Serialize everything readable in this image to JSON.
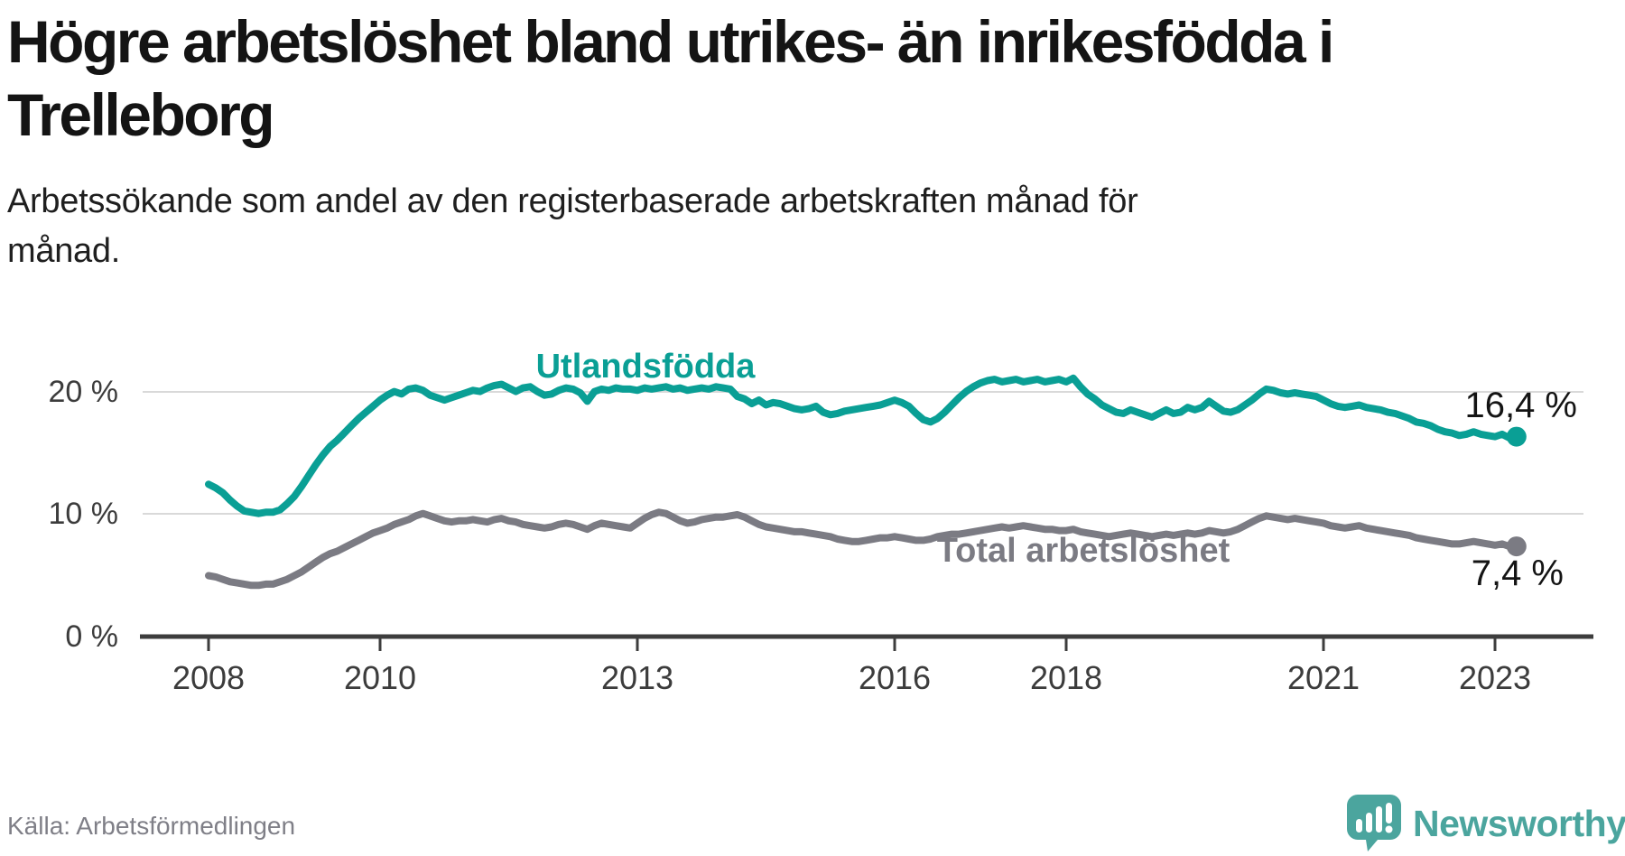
{
  "header": {
    "title_lines": [
      "Högre arbetslöshet bland utrikes- än inrikesfödda i",
      "Trelleborg"
    ],
    "subtitle_lines": [
      "Arbetssökande som andel av den registerbaserade arbetskraften månad för",
      "månad."
    ]
  },
  "footer": {
    "source": "Källa: Arbetsförmedlingen",
    "brand_name": "Newsworthy",
    "brand_color": "#4ba59e"
  },
  "chart_data": {
    "type": "line",
    "title": "Högre arbetslöshet bland utrikes- än inrikesfödda i Trelleborg",
    "subtitle": "Arbetssökande som andel av den registerbaserade arbetskraften månad för månad.",
    "x_unit": "month",
    "x_start": "2008-01",
    "x_end": "2023-04",
    "x_ticks": [
      2008,
      2010,
      2013,
      2016,
      2018,
      2021,
      2023
    ],
    "y_tick_labels": [
      "20 %",
      "10 %",
      "0 %"
    ],
    "ylim": [
      0,
      27.8
    ],
    "grid": "horizontal",
    "legend_position": "inline-labels",
    "series": [
      {
        "name": "Utlandsfödda",
        "label": "Utlandsfödda",
        "end_label": "16,4 %",
        "end_value": 16.4,
        "color": "#0a9f95",
        "values": [
          12.5,
          12.2,
          11.8,
          11.2,
          10.7,
          10.3,
          10.2,
          10.1,
          10.2,
          10.2,
          10.4,
          10.9,
          11.5,
          12.3,
          13.2,
          14.1,
          14.9,
          15.6,
          16.1,
          16.7,
          17.3,
          17.9,
          18.4,
          18.9,
          19.4,
          19.8,
          20.1,
          19.9,
          20.3,
          20.4,
          20.2,
          19.8,
          19.6,
          19.4,
          19.6,
          19.8,
          20.0,
          20.2,
          20.1,
          20.4,
          20.6,
          20.7,
          20.4,
          20.1,
          20.4,
          20.5,
          20.1,
          19.8,
          19.9,
          20.2,
          20.4,
          20.3,
          20.0,
          19.3,
          20.1,
          20.3,
          20.2,
          20.4,
          20.3,
          20.3,
          20.2,
          20.4,
          20.3,
          20.4,
          20.5,
          20.3,
          20.4,
          20.2,
          20.3,
          20.4,
          20.3,
          20.5,
          20.4,
          20.3,
          19.7,
          19.5,
          19.1,
          19.4,
          19.0,
          19.2,
          19.1,
          18.9,
          18.7,
          18.6,
          18.7,
          18.9,
          18.4,
          18.2,
          18.3,
          18.5,
          18.6,
          18.7,
          18.8,
          18.9,
          19.0,
          19.2,
          19.4,
          19.2,
          18.9,
          18.3,
          17.8,
          17.6,
          17.9,
          18.4,
          19.0,
          19.6,
          20.1,
          20.5,
          20.8,
          21.0,
          21.1,
          20.9,
          21.0,
          21.1,
          20.9,
          21.0,
          21.1,
          20.9,
          21.0,
          21.1,
          20.9,
          21.2,
          20.5,
          19.9,
          19.5,
          19.0,
          18.7,
          18.4,
          18.3,
          18.6,
          18.4,
          18.2,
          18.0,
          18.3,
          18.6,
          18.3,
          18.4,
          18.8,
          18.6,
          18.8,
          19.3,
          18.9,
          18.5,
          18.4,
          18.6,
          19.0,
          19.4,
          19.9,
          20.3,
          20.2,
          20.0,
          19.9,
          20.0,
          19.9,
          19.8,
          19.7,
          19.4,
          19.1,
          18.9,
          18.8,
          18.9,
          19.0,
          18.8,
          18.7,
          18.6,
          18.4,
          18.3,
          18.1,
          17.9,
          17.6,
          17.5,
          17.3,
          17.0,
          16.8,
          16.7,
          16.5,
          16.6,
          16.8,
          16.6,
          16.5,
          16.4,
          16.6,
          16.3,
          16.4
        ]
      },
      {
        "name": "Total arbetslöshet",
        "label": "Total arbetslöshet",
        "end_label": "7,4 %",
        "end_value": 7.4,
        "color": "#7b7b83",
        "values": [
          5.0,
          4.9,
          4.7,
          4.5,
          4.4,
          4.3,
          4.2,
          4.2,
          4.3,
          4.3,
          4.5,
          4.7,
          5.0,
          5.3,
          5.7,
          6.1,
          6.5,
          6.8,
          7.0,
          7.3,
          7.6,
          7.9,
          8.2,
          8.5,
          8.7,
          8.9,
          9.2,
          9.4,
          9.6,
          9.9,
          10.1,
          9.9,
          9.7,
          9.5,
          9.4,
          9.5,
          9.5,
          9.6,
          9.5,
          9.4,
          9.6,
          9.7,
          9.5,
          9.4,
          9.2,
          9.1,
          9.0,
          8.9,
          9.0,
          9.2,
          9.3,
          9.2,
          9.0,
          8.8,
          9.1,
          9.3,
          9.2,
          9.1,
          9.0,
          8.9,
          9.3,
          9.7,
          10.0,
          10.2,
          10.1,
          9.8,
          9.5,
          9.3,
          9.4,
          9.6,
          9.7,
          9.8,
          9.8,
          9.9,
          10.0,
          9.8,
          9.5,
          9.2,
          9.0,
          8.9,
          8.8,
          8.7,
          8.6,
          8.6,
          8.5,
          8.4,
          8.3,
          8.2,
          8.0,
          7.9,
          7.8,
          7.8,
          7.9,
          8.0,
          8.1,
          8.1,
          8.2,
          8.1,
          8.0,
          7.9,
          7.9,
          8.0,
          8.2,
          8.3,
          8.4,
          8.4,
          8.5,
          8.6,
          8.7,
          8.8,
          8.9,
          9.0,
          8.9,
          9.0,
          9.1,
          9.0,
          8.9,
          8.8,
          8.8,
          8.7,
          8.7,
          8.8,
          8.6,
          8.5,
          8.4,
          8.3,
          8.2,
          8.3,
          8.4,
          8.5,
          8.4,
          8.3,
          8.2,
          8.3,
          8.4,
          8.3,
          8.4,
          8.5,
          8.4,
          8.5,
          8.7,
          8.6,
          8.5,
          8.6,
          8.8,
          9.1,
          9.4,
          9.7,
          9.9,
          9.8,
          9.7,
          9.6,
          9.7,
          9.6,
          9.5,
          9.4,
          9.3,
          9.1,
          9.0,
          8.9,
          9.0,
          9.1,
          8.9,
          8.8,
          8.7,
          8.6,
          8.5,
          8.4,
          8.3,
          8.1,
          8.0,
          7.9,
          7.8,
          7.7,
          7.6,
          7.6,
          7.7,
          7.8,
          7.7,
          7.6,
          7.5,
          7.6,
          7.4,
          7.4
        ]
      }
    ]
  }
}
